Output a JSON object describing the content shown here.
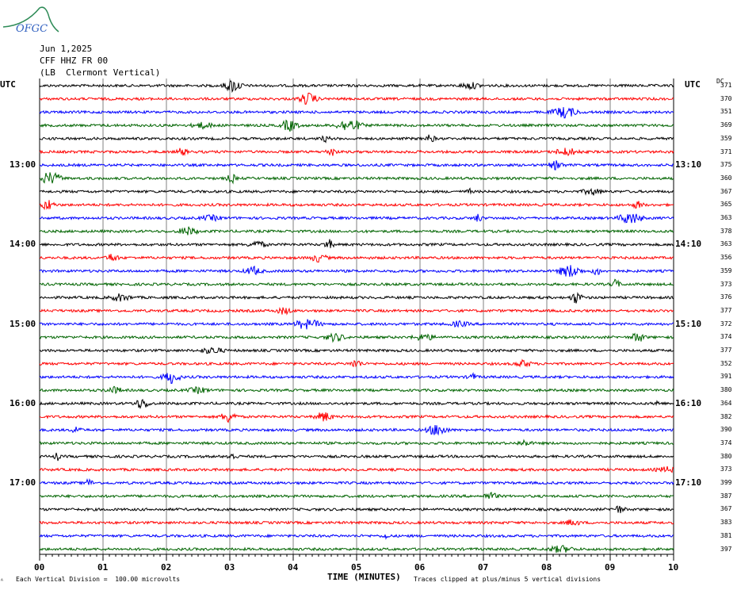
{
  "header": {
    "logo_text": "OFGC",
    "date": "Jun 1,2025",
    "station": "CFF HHZ FR 00",
    "location": "(LB  Clermont Vertical)"
  },
  "left_axis_label": "UTC",
  "right_axis_label": "UTC",
  "dc_label": "DC",
  "footer": {
    "scale_note": "Each Vertical Division =  100.00 microvolts",
    "clip_note": "Traces clipped at plus/minus 5 vertical divisions",
    "corner_mark": "ᴬ"
  },
  "colors": {
    "black": "#000000",
    "red": "#ff0000",
    "blue": "#0000ff",
    "green": "#006400",
    "grid": "#808080"
  },
  "chart_data": {
    "type": "line",
    "title": "",
    "xlabel": "TIME (MINUTES)",
    "ylabel": "",
    "xlim": [
      0,
      10
    ],
    "x_ticks": [
      "00",
      "01",
      "02",
      "03",
      "04",
      "05",
      "06",
      "07",
      "08",
      "09",
      "10"
    ],
    "grid": true,
    "trace_interval_minutes": 10,
    "left_time_labels": [
      {
        "row": 6,
        "label": "13:00"
      },
      {
        "row": 12,
        "label": "14:00"
      },
      {
        "row": 18,
        "label": "15:00"
      },
      {
        "row": 24,
        "label": "16:00"
      },
      {
        "row": 30,
        "label": "17:00"
      }
    ],
    "right_time_labels": [
      {
        "row": 6,
        "label": "13:10"
      },
      {
        "row": 12,
        "label": "14:10"
      },
      {
        "row": 18,
        "label": "15:10"
      },
      {
        "row": 24,
        "label": "16:10"
      },
      {
        "row": 30,
        "label": "17:10"
      }
    ],
    "trace_colors": [
      "black",
      "red",
      "blue",
      "green"
    ],
    "dc_offsets": [
      371,
      370,
      351,
      369,
      359,
      371,
      375,
      360,
      367,
      365,
      363,
      378,
      363,
      356,
      359,
      373,
      376,
      377,
      372,
      374,
      377,
      352,
      391,
      380,
      364,
      382,
      390,
      374,
      380,
      373,
      399,
      387,
      367,
      383,
      381,
      397
    ]
  }
}
